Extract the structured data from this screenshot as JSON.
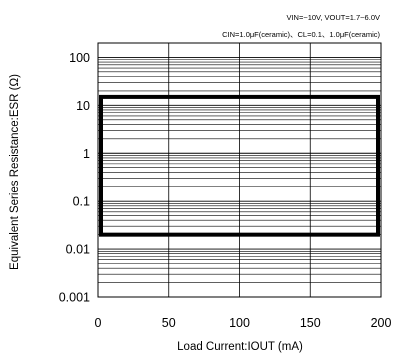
{
  "chart_data": {
    "type": "area",
    "conditions": {
      "line1": "VIN=~10V, VOUT=1.7~6.0V",
      "line2": "CIN=1.0μF(ceramic)、CL=0.1、1.0μF(ceramic)"
    },
    "xlabel": "Load Current:IOUT (mA)",
    "ylabel": "Equivalent Series Resistance:ESR (Ω)",
    "x_scale": "linear",
    "y_scale": "log",
    "xlim": [
      0,
      200
    ],
    "ylim": [
      0.001,
      200
    ],
    "x_ticks": [
      0,
      50,
      100,
      150,
      200
    ],
    "x_tick_labels": [
      "0",
      "50",
      "100",
      "150",
      "200"
    ],
    "y_ticks": [
      0.001,
      0.01,
      0.1,
      1,
      10,
      100
    ],
    "y_tick_labels": [
      "0.001",
      "0.01",
      "0.1",
      "1",
      "10",
      "100"
    ],
    "grid": true,
    "stable_region": {
      "x": [
        0,
        200
      ],
      "y": [
        0.02,
        15
      ]
    }
  }
}
